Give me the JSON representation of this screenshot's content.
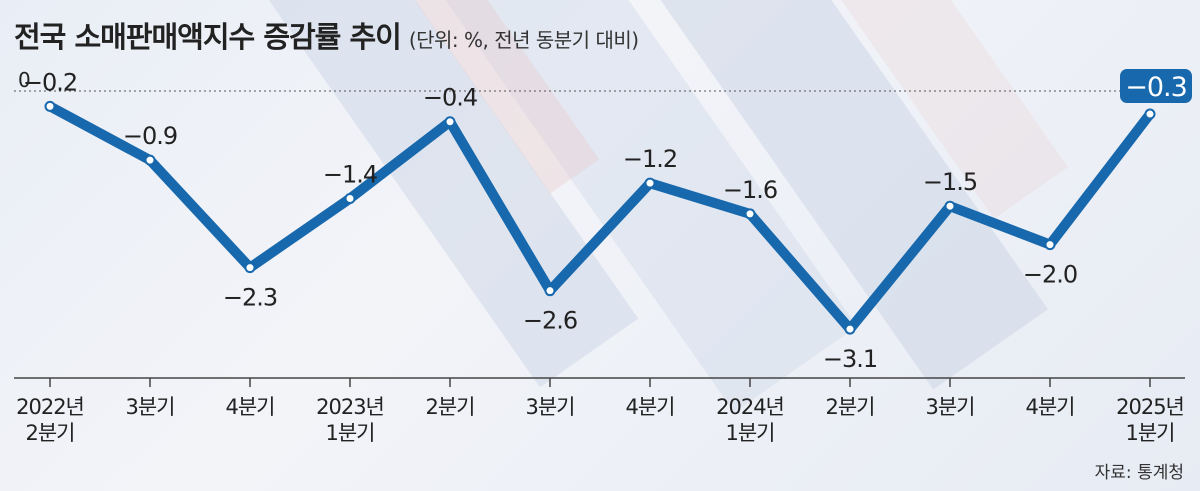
{
  "title": "전국 소매판매액지수 증감률 추이",
  "unit": "(단위: %, 전년 동분기 대비)",
  "source": "자료: 통계청",
  "colors": {
    "line": "#1768ad",
    "highlight_bg": "#1768ad",
    "highlight_text": "#ffffff"
  },
  "chart_data": {
    "type": "line",
    "categories": [
      "2022년 2분기",
      "3분기",
      "4분기",
      "2023년 1분기",
      "2분기",
      "3분기",
      "4분기",
      "2024년 1분기",
      "2분기",
      "3분기",
      "4분기",
      "2025년 1분기"
    ],
    "category_lines": [
      [
        "2022년",
        "2분기"
      ],
      [
        "3분기"
      ],
      [
        "4분기"
      ],
      [
        "2023년",
        "1분기"
      ],
      [
        "2분기"
      ],
      [
        "3분기"
      ],
      [
        "4분기"
      ],
      [
        "2024년",
        "1분기"
      ],
      [
        "2분기"
      ],
      [
        "3분기"
      ],
      [
        "4분기"
      ],
      [
        "2025년",
        "1분기"
      ]
    ],
    "values": [
      -0.2,
      -0.9,
      -2.3,
      -1.4,
      -0.4,
      -2.6,
      -1.2,
      -1.6,
      -3.1,
      -1.5,
      -2.0,
      -0.3
    ],
    "value_labels": [
      "−0.2",
      "−0.9",
      "−2.3",
      "−1.4",
      "−0.4",
      "−2.6",
      "−1.2",
      "−1.6",
      "−3.1",
      "−1.5",
      "−2.0",
      "−0.3"
    ],
    "label_positions": [
      "above",
      "above",
      "below",
      "above",
      "above",
      "below",
      "above",
      "above",
      "below",
      "above",
      "below",
      "above"
    ],
    "highlight_index": 11,
    "zero_label": "0",
    "ylim": [
      -3.6,
      0
    ],
    "xlabel": "",
    "ylabel": "",
    "grid": false,
    "legend": "none"
  }
}
